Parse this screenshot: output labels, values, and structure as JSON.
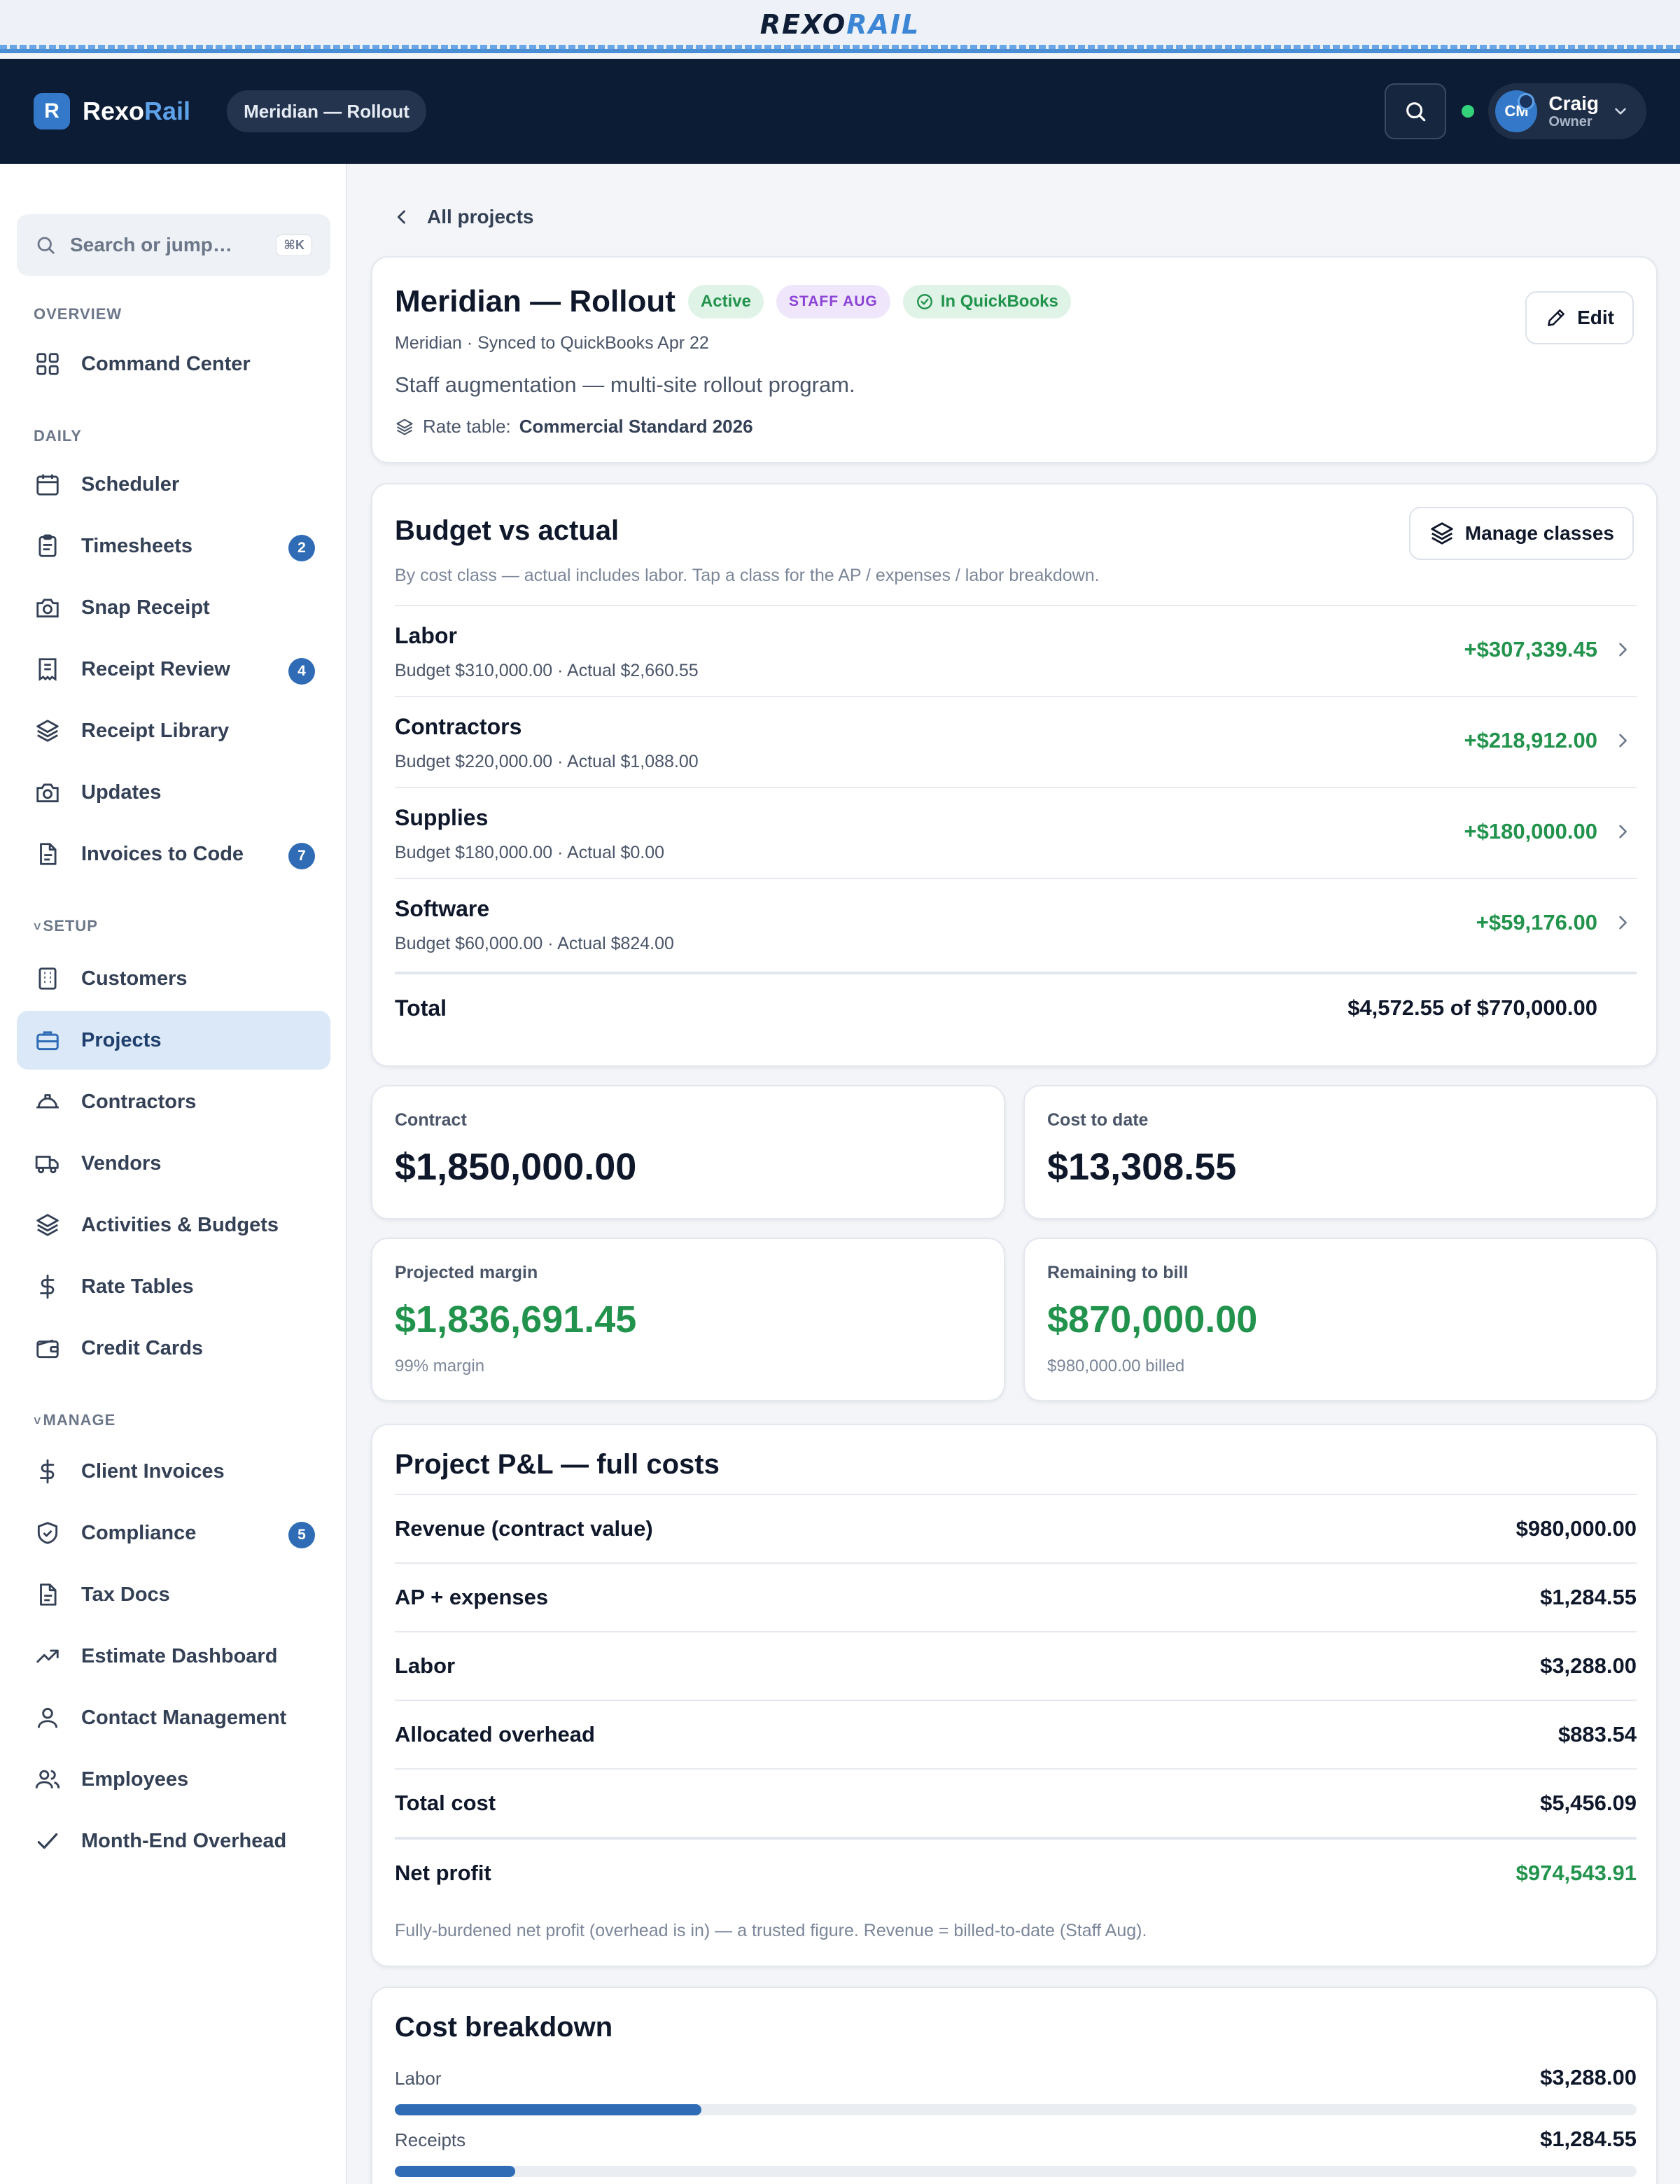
{
  "brand": {
    "logo_dark": "REXO",
    "logo_light": "RAIL",
    "mark": "R",
    "app_name_a": "Rexo",
    "app_name_b": "Rail"
  },
  "header": {
    "project_pill": "Meridian — Rollout",
    "user_initials": "CM",
    "user_name": "Craig",
    "user_role": "Owner",
    "status": "online",
    "icons": [
      "search-icon",
      "chevron-down-icon"
    ]
  },
  "sidebar": {
    "search_placeholder": "Search or jump…",
    "search_shortcut": "⌘K",
    "sections": [
      {
        "label": "OVERVIEW",
        "items": [
          {
            "label": "Command Center",
            "icon": "grid-icon"
          }
        ]
      },
      {
        "label": "DAILY",
        "items": [
          {
            "label": "Scheduler",
            "icon": "calendar-icon"
          },
          {
            "label": "Timesheets",
            "icon": "clipboard-icon",
            "badge": "2"
          },
          {
            "label": "Snap Receipt",
            "icon": "camera-icon"
          },
          {
            "label": "Receipt Review",
            "icon": "receipt-icon",
            "badge": "4"
          },
          {
            "label": "Receipt Library",
            "icon": "layers-icon"
          },
          {
            "label": "Updates",
            "icon": "camera-icon"
          },
          {
            "label": "Invoices to Code",
            "icon": "file-icon",
            "badge": "7"
          }
        ]
      },
      {
        "label": "SETUP",
        "caret": "˅",
        "items": [
          {
            "label": "Customers",
            "icon": "building-icon"
          },
          {
            "label": "Projects",
            "icon": "briefcase-icon",
            "active": true
          },
          {
            "label": "Contractors",
            "icon": "hardhat-icon"
          },
          {
            "label": "Vendors",
            "icon": "truck-icon"
          },
          {
            "label": "Activities & Budgets",
            "icon": "layers-icon"
          },
          {
            "label": "Rate Tables",
            "icon": "dollar-icon"
          },
          {
            "label": "Credit Cards",
            "icon": "wallet-icon"
          }
        ]
      },
      {
        "label": "MANAGE",
        "caret": "˅",
        "items": [
          {
            "label": "Client Invoices",
            "icon": "dollar-icon"
          },
          {
            "label": "Compliance",
            "icon": "shield-icon",
            "badge": "5"
          },
          {
            "label": "Tax Docs",
            "icon": "file-icon"
          },
          {
            "label": "Estimate Dashboard",
            "icon": "trending-icon"
          },
          {
            "label": "Contact Management",
            "icon": "user-icon"
          },
          {
            "label": "Employees",
            "icon": "users-icon"
          },
          {
            "label": "Month-End Overhead",
            "icon": "check-icon"
          }
        ]
      }
    ]
  },
  "main": {
    "back_label": "All projects",
    "project": {
      "title": "Meridian — Rollout",
      "tag_status": "Active",
      "tag_type": "STAFF AUG",
      "tag_sync": "In QuickBooks",
      "subtitle": "Meridian · Synced to QuickBooks Apr 22",
      "description": "Staff augmentation — multi-site rollout program.",
      "rate_label": "Rate table:",
      "rate_value": "Commercial Standard 2026",
      "edit_label": "Edit"
    },
    "budget": {
      "title": "Budget vs actual",
      "manage_label": "Manage classes",
      "note": "By cost class — actual includes labor. Tap a class for the AP / expenses / labor breakdown.",
      "rows": [
        {
          "name": "Labor",
          "detail": "Budget $310,000.00 · Actual $2,660.55",
          "variance": "+$307,339.45"
        },
        {
          "name": "Contractors",
          "detail": "Budget $220,000.00 · Actual $1,088.00",
          "variance": "+$218,912.00"
        },
        {
          "name": "Supplies",
          "detail": "Budget $180,000.00 · Actual $0.00",
          "variance": "+$180,000.00"
        },
        {
          "name": "Software",
          "detail": "Budget $60,000.00 · Actual $824.00",
          "variance": "+$59,176.00"
        }
      ],
      "total_label": "Total",
      "total_value": "$4,572.55 of $770,000.00"
    },
    "stats": {
      "contract": {
        "label": "Contract",
        "value": "$1,850,000.00"
      },
      "cost": {
        "label": "Cost to date",
        "value": "$13,308.55"
      },
      "margin": {
        "label": "Projected margin",
        "value": "$1,836,691.45",
        "sub": "99% margin"
      },
      "remaining": {
        "label": "Remaining to bill",
        "value": "$870,000.00",
        "sub": "$980,000.00 billed"
      }
    },
    "pl": {
      "title": "Project P&L — full costs",
      "rows": [
        {
          "name": "Revenue (contract value)",
          "value": "$980,000.00"
        },
        {
          "name": "AP + expenses",
          "value": "$1,284.55"
        },
        {
          "name": "Labor",
          "value": "$3,288.00"
        },
        {
          "name": "Allocated overhead",
          "value": "$883.54"
        },
        {
          "name": "Total cost",
          "value": "$5,456.09"
        }
      ],
      "net_label": "Net profit",
      "net_value": "$974,543.91",
      "note": "Fully-burdened net profit (overhead is in) — a trusted figure. Revenue = billed-to-date (Staff Aug)."
    },
    "breakdown": {
      "title": "Cost breakdown",
      "rows": [
        {
          "name": "Labor",
          "value": "$3,288.00",
          "share": 0.247
        },
        {
          "name": "Receipts",
          "value": "$1,284.55",
          "share": 0.097
        }
      ]
    }
  },
  "colors": {
    "accent": "#2f6cb5",
    "positive": "#22934c",
    "header_bg": "#0d1c35"
  }
}
